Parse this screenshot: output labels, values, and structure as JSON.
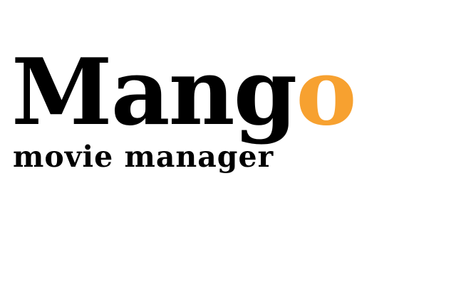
{
  "logo": {
    "wordmark_main": "Mang",
    "wordmark_accent": "o",
    "tagline": "movie manager",
    "colors": {
      "text": "#000000",
      "accent": "#f7a130",
      "background": "#ffffff"
    }
  }
}
